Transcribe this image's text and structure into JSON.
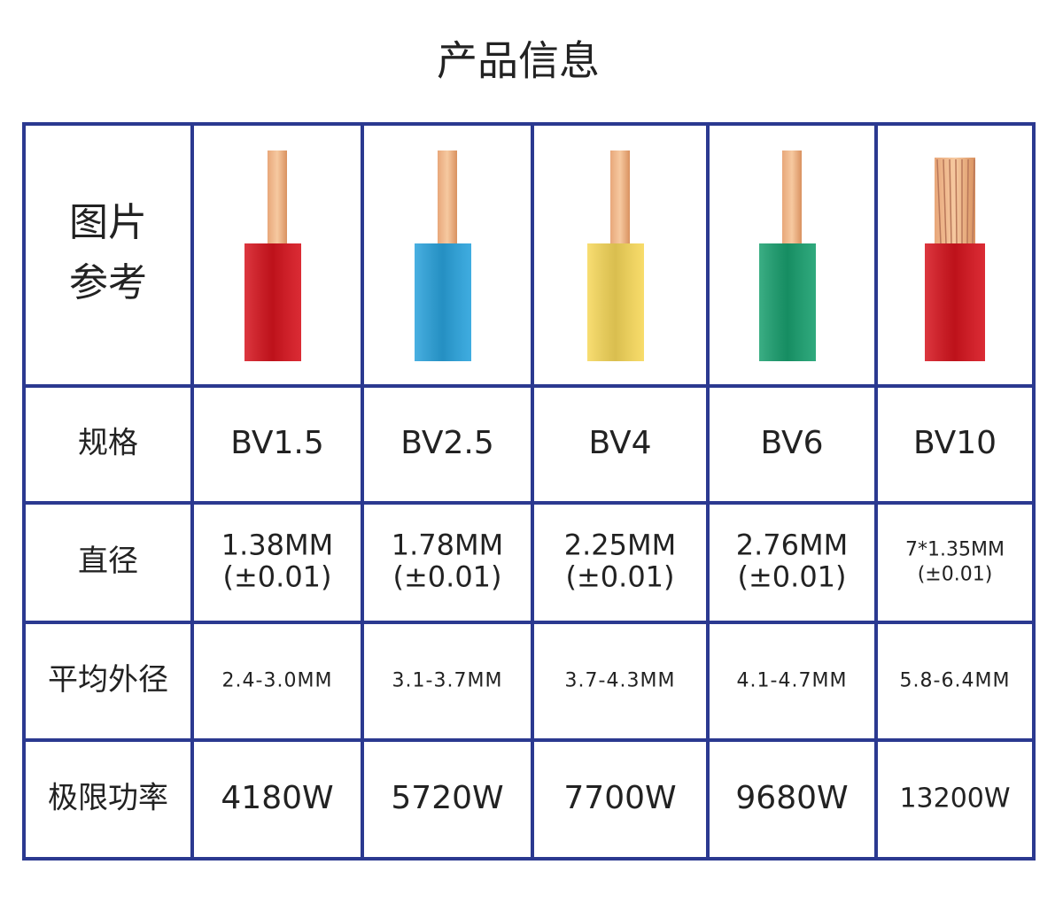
{
  "title": "产品信息",
  "table": {
    "row_labels": [
      [
        "图片",
        "参考"
      ],
      "规格",
      "直径",
      "平均外径",
      "极限功率"
    ],
    "products": [
      {
        "color": "#d7141e",
        "spec": "BV1.5",
        "diameter": "1.38MM",
        "tolerance": "(±0.01)",
        "outer": "2.4-3.0MM",
        "power": "4180W"
      },
      {
        "color": "#2aa3dd",
        "spec": "BV2.5",
        "diameter": "1.78MM",
        "tolerance": "(±0.01)",
        "outer": "3.1-3.7MM",
        "power": "5720W"
      },
      {
        "color": "#f7d85a",
        "spec": "BV4",
        "diameter": "2.25MM",
        "tolerance": "(±0.01)",
        "outer": "3.7-4.3MM",
        "power": "7700W"
      },
      {
        "color": "#19a06f",
        "spec": "BV6",
        "diameter": "2.76MM",
        "tolerance": "(±0.01)",
        "outer": "4.1-4.7MM",
        "power": "9680W"
      },
      {
        "color": "#d7141e",
        "spec": "BV10",
        "diameter": "7*1.35MM",
        "tolerance": "(±0.01)",
        "outer": "5.8-6.4MM",
        "power": "13200W"
      }
    ]
  }
}
